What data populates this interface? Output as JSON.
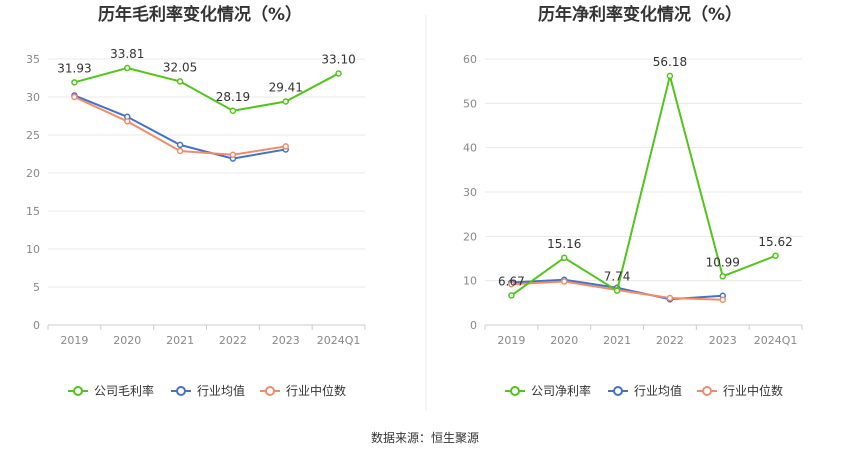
{
  "chart_data": [
    {
      "type": "line",
      "title": "历年毛利率变化情况（%）",
      "categories": [
        "2019",
        "2020",
        "2021",
        "2022",
        "2023",
        "2024Q1"
      ],
      "ylim": [
        0,
        35
      ],
      "yticks": [
        0,
        5,
        10,
        15,
        20,
        25,
        30,
        35
      ],
      "series": [
        {
          "name": "公司毛利率",
          "color": "#52c41a",
          "values": [
            31.93,
            33.81,
            32.05,
            28.19,
            29.41,
            33.1
          ],
          "labels": [
            "31.93",
            "33.81",
            "32.05",
            "28.19",
            "29.41",
            "33.10"
          ]
        },
        {
          "name": "行业均值",
          "color": "#4472c4",
          "values": [
            30.2,
            27.4,
            23.7,
            21.9,
            23.1,
            null
          ]
        },
        {
          "name": "行业中位数",
          "color": "#f08c6c",
          "values": [
            30.0,
            26.8,
            22.9,
            22.4,
            23.5,
            null
          ]
        }
      ]
    },
    {
      "type": "line",
      "title": "历年净利率变化情况（%）",
      "categories": [
        "2019",
        "2020",
        "2021",
        "2022",
        "2023",
        "2024Q1"
      ],
      "ylim": [
        0,
        60
      ],
      "yticks": [
        0,
        10,
        20,
        30,
        40,
        50,
        60
      ],
      "series": [
        {
          "name": "公司净利率",
          "color": "#52c41a",
          "values": [
            6.67,
            15.16,
            7.74,
            56.18,
            10.99,
            15.62
          ],
          "labels": [
            "6.67",
            "15.16",
            "7.74",
            "56.18",
            "10.99",
            "15.62"
          ]
        },
        {
          "name": "行业均值",
          "color": "#4472c4",
          "values": [
            9.6,
            10.2,
            8.4,
            5.8,
            6.6,
            null
          ]
        },
        {
          "name": "行业中位数",
          "color": "#f08c6c",
          "values": [
            9.2,
            9.8,
            7.9,
            6.1,
            5.7,
            null
          ]
        }
      ]
    }
  ],
  "source": "数据来源：恒生聚源"
}
